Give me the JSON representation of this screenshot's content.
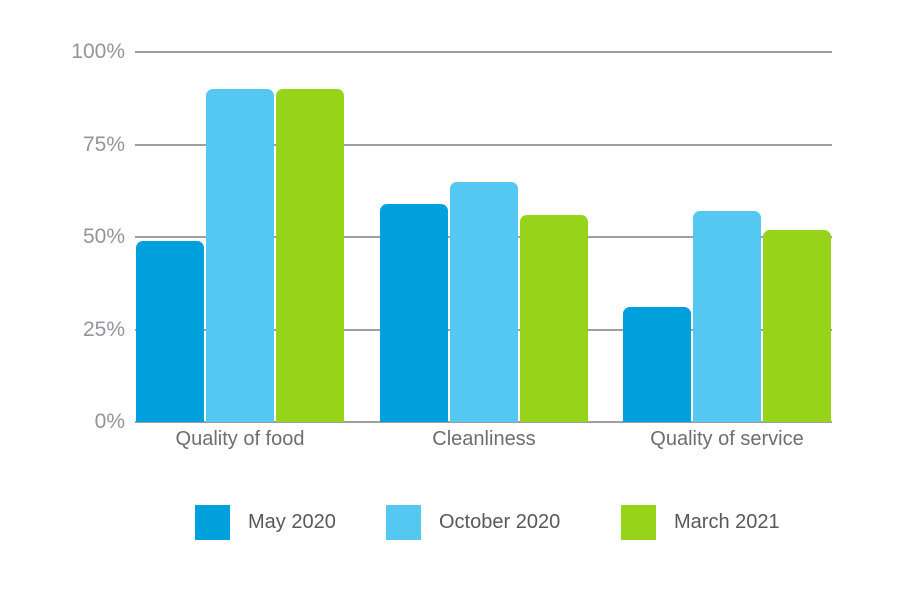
{
  "chart_data": {
    "type": "bar",
    "title": "",
    "xlabel": "",
    "ylabel": "",
    "categories": [
      "Quality of food",
      "Cleanliness",
      "Quality of service"
    ],
    "series": [
      {
        "name": "May 2020",
        "color": "#00A0DC",
        "values": [
          49,
          59,
          31
        ]
      },
      {
        "name": "October 2020",
        "color": "#54C8F0",
        "values": [
          90,
          65,
          57
        ]
      },
      {
        "name": "March 2021",
        "color": "#97D318",
        "values": [
          90,
          56,
          52
        ]
      }
    ],
    "ylim": [
      0,
      100
    ],
    "yticks": [
      {
        "label": "100%",
        "value": 100
      },
      {
        "label": "75%",
        "value": 75
      },
      {
        "label": "50%",
        "value": 50
      },
      {
        "label": "25%",
        "value": 25
      },
      {
        "label": "0%",
        "value": 0
      }
    ],
    "grid": true,
    "gridline_color": "#9e9fa2",
    "legend_position": "bottom",
    "value_format": "percent"
  }
}
